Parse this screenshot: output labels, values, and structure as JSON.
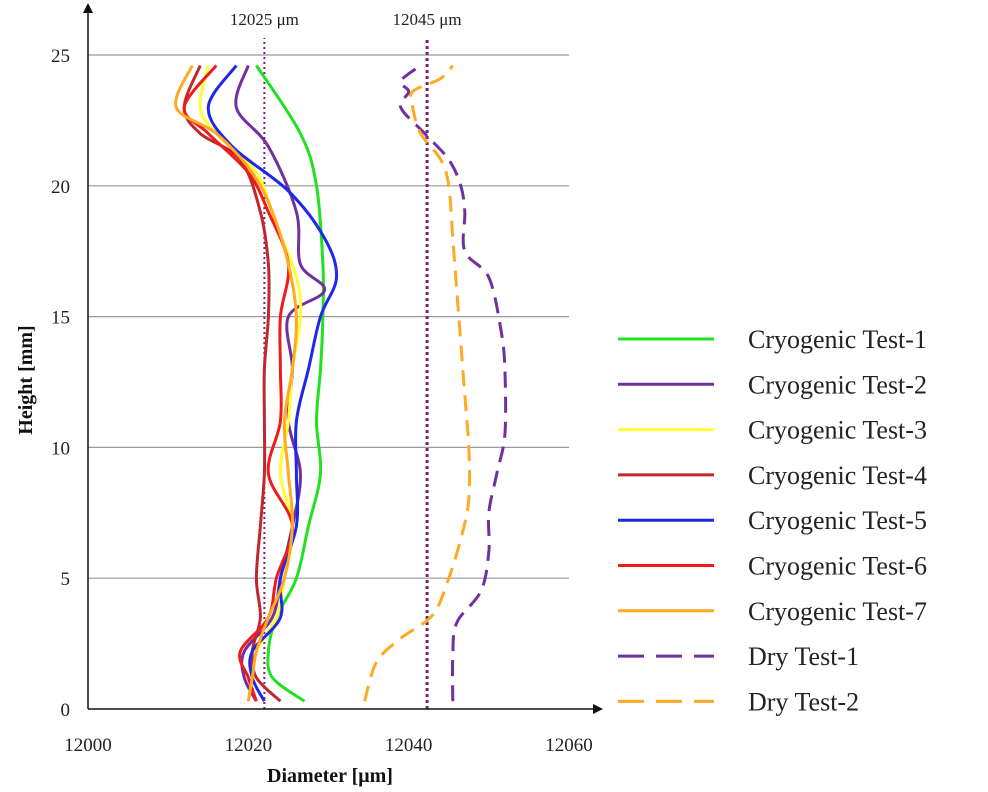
{
  "chart_data": {
    "type": "line",
    "xlabel": "Diameter [μm]",
    "ylabel": "Height [mm]",
    "xlim": [
      12000,
      12060
    ],
    "ylim": [
      0,
      25
    ],
    "xticks": [
      12000,
      12020,
      12040,
      12060
    ],
    "yticks": [
      0,
      5,
      10,
      15,
      20,
      25
    ],
    "grid": "horizontal",
    "legend_position": "right",
    "reference_lines": [
      {
        "label": "12025 μm",
        "x": 12022,
        "color": "#7b1f6e"
      },
      {
        "label": "12045 μm",
        "x": 12042.3,
        "color": "#7b1f6e"
      }
    ],
    "series": [
      {
        "name": "Cryogenic Test-1",
        "color": "#22e022",
        "dash": "solid",
        "x": [
          12027,
          12023,
          12022.5,
          12023.5,
          12026,
          12027.5,
          12029,
          12028.5,
          12029,
          12029.3,
          12029.3,
          12028.5,
          12026.5,
          12021
        ],
        "y": [
          0.3,
          1.2,
          2.2,
          3.5,
          5,
          7,
          9,
          11,
          13,
          15,
          17,
          20,
          22,
          24.6
        ]
      },
      {
        "name": "Cryogenic Test-2",
        "color": "#7030a0",
        "dash": "solid",
        "x": [
          12021,
          12019.5,
          12019.5,
          12023,
          12024,
          12025.5,
          12026.5,
          12025,
          12025.5,
          12025,
          12029.5,
          12026.5,
          12026,
          12022.5,
          12018.5,
          12020
        ],
        "y": [
          0.3,
          1.2,
          2.2,
          3.5,
          5,
          7,
          9,
          11,
          13,
          15,
          16,
          17,
          19,
          21.5,
          23,
          24.6
        ]
      },
      {
        "name": "Cryogenic Test-3",
        "color": "#ffff33",
        "dash": "solid",
        "x": [
          12020,
          12020.5,
          12021,
          12023.5,
          12024.5,
          12025.5,
          12024,
          12025,
          12025.5,
          12026.5,
          12026,
          12023.5,
          12021,
          12016,
          12014,
          12015
        ],
        "y": [
          0.3,
          1.2,
          2.2,
          3.5,
          5,
          7,
          9,
          11,
          13,
          15,
          16.5,
          18.5,
          20.5,
          22,
          23,
          24.6
        ]
      },
      {
        "name": "Cryogenic Test-4",
        "color": "#c0282d",
        "dash": "solid",
        "x": [
          12024,
          12021,
          12020.5,
          12021.5,
          12021,
          12021.5,
          12022,
          12022,
          12022,
          12022.5,
          12022.5,
          12021.5,
          12019,
          12014,
          12012,
          12014
        ],
        "y": [
          0.3,
          1.2,
          2.2,
          3.5,
          5,
          7,
          9,
          11,
          13,
          15,
          17,
          19,
          21,
          22,
          23,
          24.6
        ]
      },
      {
        "name": "Cryogenic Test-5",
        "color": "#1f28e8",
        "dash": "solid",
        "x": [
          12022,
          12020.5,
          12020.5,
          12024,
          12024,
          12026,
          12026,
          12026,
          12027.5,
          12029,
          12031,
          12029.5,
          12025,
          12018,
          12015,
          12018.5
        ],
        "y": [
          0.3,
          1.2,
          2.2,
          3.5,
          5,
          7,
          9,
          11,
          13,
          15,
          16.5,
          18,
          19.8,
          21.5,
          23,
          24.6
        ]
      },
      {
        "name": "Cryogenic Test-6",
        "color": "#ee1c1c",
        "dash": "solid",
        "x": [
          12021,
          12020,
          12019,
          12022.5,
          12023.5,
          12025.5,
          12022.5,
          12024,
          12024,
          12024,
          12025,
          12022.5,
          12020,
          12015,
          12012,
          12016
        ],
        "y": [
          0.3,
          1.2,
          2.2,
          3.5,
          5,
          7,
          9,
          11,
          13,
          15,
          17,
          19,
          20.5,
          22,
          23,
          24.6
        ]
      },
      {
        "name": "Cryogenic Test-7",
        "color": "#ffaa22",
        "dash": "solid",
        "x": [
          12020,
          12020.5,
          12021,
          12022.5,
          12024.5,
          12025.5,
          12025,
          12024.5,
          12025.5,
          12026,
          12025,
          12023,
          12020.5,
          12016,
          12011,
          12013
        ],
        "y": [
          0.3,
          1.2,
          2.2,
          3.5,
          5,
          7,
          9,
          11,
          13,
          15,
          17,
          19,
          20.5,
          22,
          23,
          24.6
        ]
      },
      {
        "name": "Dry Test-1",
        "color": "#7030a0",
        "dash": "dashed",
        "x": [
          12045.5,
          12045.5,
          12046,
          12049,
          12050,
          12050,
          12051,
          12052,
          12052,
          12051.5,
          12050,
          12047,
          12047,
          12046.5,
          12045,
          12042,
          12039,
          12040,
          12039,
          12041.5
        ],
        "y": [
          0.3,
          2,
          3.3,
          4.5,
          6,
          7.5,
          9,
          10.5,
          13,
          14.5,
          16.5,
          17.5,
          19,
          20,
          21,
          22,
          23,
          23.6,
          24,
          24.6
        ]
      },
      {
        "name": "Dry Test-2",
        "color": "#ffaa22",
        "dash": "dashed",
        "x": [
          12034.5,
          12036,
          12039,
          12043,
          12045,
          12046.5,
          12047.5,
          12047.5,
          12047,
          12046.5,
          12046,
          12045.5,
          12045,
          12044,
          12041.5,
          12040.5,
          12040.5,
          12044,
          12045.5
        ],
        "y": [
          0.3,
          1.8,
          2.7,
          3.6,
          5,
          6.5,
          8,
          10,
          12,
          14,
          16,
          18,
          20,
          21,
          22,
          23,
          23.6,
          24.1,
          24.6
        ]
      }
    ]
  }
}
